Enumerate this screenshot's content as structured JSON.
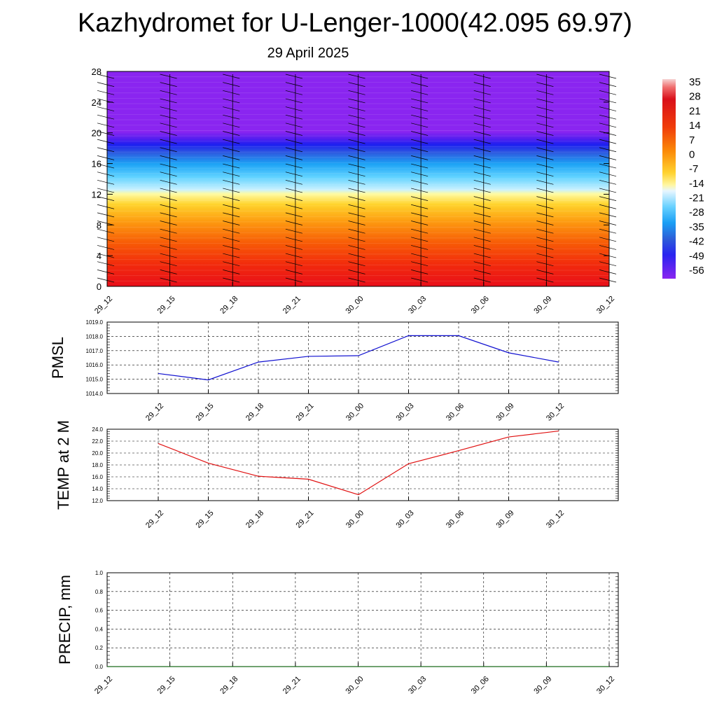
{
  "title": "Kazhydromet for U-Lenger-1000(42.095 69.97)",
  "subtitle": "29 April 2025",
  "colors": {
    "pmsl_line": "#1010d0",
    "temp_line": "#e01010",
    "precip_line": "#1a6a1a",
    "grid": "#000000"
  },
  "chart_data": [
    {
      "type": "heatmap",
      "name": "height-time section",
      "x_categories": [
        "29_12",
        "29_15",
        "29_18",
        "29_21",
        "30_00",
        "30_03",
        "30_06",
        "30_09",
        "30_12"
      ],
      "yticks": [
        0,
        4,
        8,
        12,
        16,
        20,
        24,
        28
      ],
      "ylim": [
        0,
        28
      ],
      "colorbar": {
        "labels": [
          "35",
          "28",
          "21",
          "14",
          "7",
          "0",
          "-7",
          "-14",
          "-21",
          "-28",
          "-35",
          "-42",
          "-49",
          "-56"
        ]
      },
      "wind_barbs": true
    },
    {
      "type": "line",
      "ylabel": "PMSL",
      "categories": [
        "29_12",
        "29_15",
        "29_18",
        "29_21",
        "30_00",
        "30_03",
        "30_06",
        "30_09",
        "30_12"
      ],
      "values": [
        1015.4,
        1014.95,
        1016.2,
        1016.6,
        1016.65,
        1018.05,
        1018.05,
        1016.85,
        1016.2
      ],
      "ylim": [
        1014.0,
        1019.0
      ],
      "yticks": [
        "1014.0",
        "1015.0",
        "1016.0",
        "1017.0",
        "1018.0",
        "1019.0"
      ],
      "grid": true
    },
    {
      "type": "line",
      "ylabel": "TEMP at 2 M",
      "categories": [
        "29_12",
        "29_15",
        "29_18",
        "29_21",
        "30_00",
        "30_03",
        "30_06",
        "30_09",
        "30_12"
      ],
      "values": [
        21.6,
        18.3,
        16.1,
        15.6,
        13.0,
        18.2,
        20.4,
        22.7,
        23.7
      ],
      "ylim": [
        12.0,
        24.0
      ],
      "yticks": [
        "12.0",
        "14.0",
        "16.0",
        "18.0",
        "20.0",
        "22.0",
        "24.0"
      ],
      "grid": true
    },
    {
      "type": "line",
      "ylabel": "PRECIP, mm",
      "categories": [
        "29_12",
        "29_15",
        "29_18",
        "29_21",
        "30_00",
        "30_03",
        "30_06",
        "30_09",
        "30_12"
      ],
      "values": [
        0,
        0,
        0,
        0,
        0,
        0,
        0,
        0,
        0
      ],
      "ylim": [
        0.0,
        1.0
      ],
      "yticks": [
        "0.0",
        "0.2",
        "0.4",
        "0.6",
        "0.8",
        "1.0"
      ],
      "grid": true
    }
  ]
}
